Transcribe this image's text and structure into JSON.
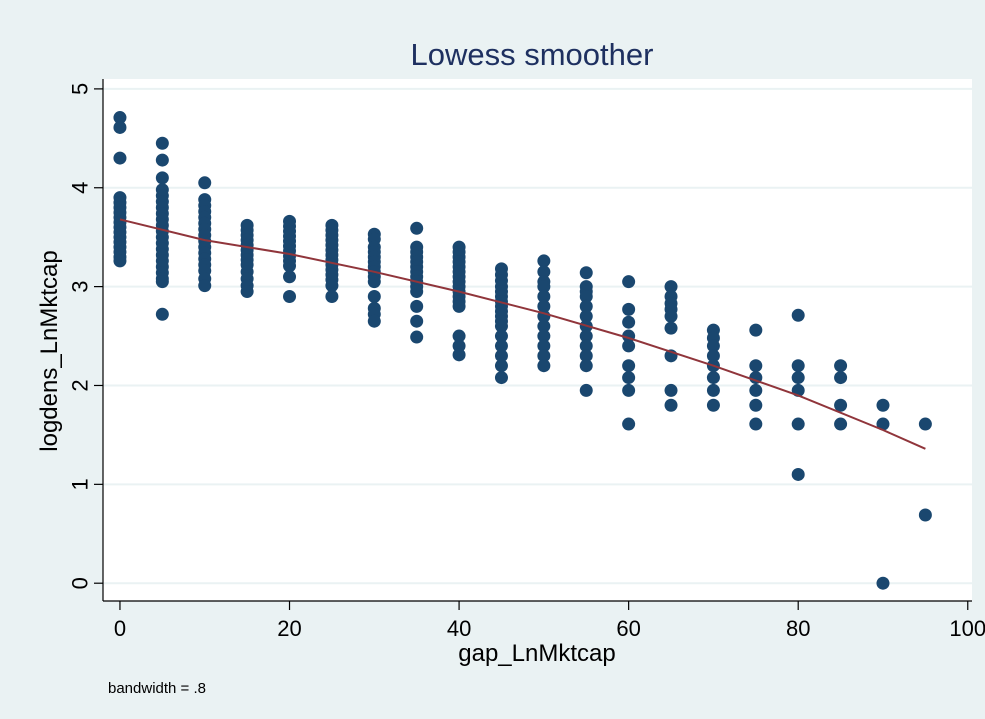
{
  "chart_data": {
    "type": "scatter",
    "title": "Lowess smoother",
    "xlabel": "gap_LnMktcap",
    "ylabel": "logdens_LnMktcap",
    "note": "bandwidth = .8",
    "xlim": [
      -2,
      100.5
    ],
    "ylim": [
      -0.18,
      5.1
    ],
    "xticks": [
      0,
      20,
      40,
      60,
      80,
      100
    ],
    "yticks": [
      0,
      1,
      2,
      3,
      4,
      5
    ],
    "grid": true,
    "colors": {
      "background": "#eaf2f3",
      "plot": "#ffffff",
      "points": "#1a476f",
      "line": "#90353b",
      "grid": "#eaf2f3",
      "text": "#000000",
      "title": "#1e3060"
    },
    "scatter_groups": [
      {
        "x": 0,
        "y": [
          4.71,
          4.61,
          4.3,
          3.9,
          3.85,
          3.8,
          3.75,
          3.7,
          3.65,
          3.6,
          3.55,
          3.5,
          3.45,
          3.4,
          3.35,
          3.3,
          3.26
        ]
      },
      {
        "x": 5,
        "y": [
          4.45,
          4.28,
          4.1,
          3.98,
          3.92,
          3.86,
          3.8,
          3.74,
          3.68,
          3.62,
          3.56,
          3.5,
          3.44,
          3.38,
          3.32,
          3.26,
          3.2,
          3.14,
          3.08,
          3.05,
          2.72
        ]
      },
      {
        "x": 10,
        "y": [
          4.05,
          3.88,
          3.82,
          3.76,
          3.7,
          3.64,
          3.58,
          3.52,
          3.46,
          3.4,
          3.34,
          3.28,
          3.22,
          3.16,
          3.08,
          3.01
        ]
      },
      {
        "x": 15,
        "y": [
          3.62,
          3.57,
          3.52,
          3.47,
          3.42,
          3.37,
          3.32,
          3.27,
          3.22,
          3.15,
          3.08,
          3.01,
          2.95
        ]
      },
      {
        "x": 20,
        "y": [
          3.66,
          3.61,
          3.56,
          3.51,
          3.46,
          3.41,
          3.36,
          3.31,
          3.26,
          3.21,
          3.1,
          2.9
        ]
      },
      {
        "x": 25,
        "y": [
          3.62,
          3.57,
          3.52,
          3.47,
          3.42,
          3.37,
          3.32,
          3.27,
          3.22,
          3.17,
          3.12,
          3.07,
          3.01,
          2.9
        ]
      },
      {
        "x": 30,
        "y": [
          3.53,
          3.48,
          3.4,
          3.35,
          3.3,
          3.25,
          3.2,
          3.15,
          3.1,
          3.05,
          2.9,
          2.78,
          2.72,
          2.65
        ]
      },
      {
        "x": 35,
        "y": [
          3.59,
          3.4,
          3.35,
          3.3,
          3.25,
          3.2,
          3.15,
          3.1,
          3.05,
          3.0,
          2.95,
          2.8,
          2.65,
          2.49
        ]
      },
      {
        "x": 40,
        "y": [
          3.4,
          3.35,
          3.3,
          3.25,
          3.2,
          3.15,
          3.1,
          3.05,
          3.0,
          2.95,
          2.9,
          2.85,
          2.8,
          2.5,
          2.4,
          2.31
        ]
      },
      {
        "x": 45,
        "y": [
          3.18,
          3.12,
          3.06,
          3.0,
          2.95,
          2.9,
          2.85,
          2.8,
          2.75,
          2.7,
          2.65,
          2.6,
          2.5,
          2.4,
          2.3,
          2.2,
          2.08
        ]
      },
      {
        "x": 50,
        "y": [
          3.26,
          3.15,
          3.05,
          3.0,
          2.9,
          2.8,
          2.7,
          2.6,
          2.5,
          2.4,
          2.3,
          2.2
        ]
      },
      {
        "x": 55,
        "y": [
          3.14,
          3.0,
          2.95,
          2.9,
          2.8,
          2.7,
          2.6,
          2.5,
          2.4,
          2.3,
          2.2,
          1.95
        ]
      },
      {
        "x": 60,
        "y": [
          3.05,
          2.77,
          2.64,
          2.5,
          2.4,
          2.2,
          2.08,
          1.95,
          1.61
        ]
      },
      {
        "x": 65,
        "y": [
          3.0,
          2.9,
          2.83,
          2.77,
          2.7,
          2.58,
          2.3,
          1.95,
          1.8
        ]
      },
      {
        "x": 70,
        "y": [
          2.56,
          2.48,
          2.4,
          2.3,
          2.2,
          2.08,
          1.95,
          1.8
        ]
      },
      {
        "x": 75,
        "y": [
          2.56,
          2.2,
          2.08,
          1.95,
          1.8,
          1.61
        ]
      },
      {
        "x": 80,
        "y": [
          2.71,
          2.2,
          2.08,
          1.95,
          1.61,
          1.1
        ]
      },
      {
        "x": 85,
        "y": [
          2.2,
          2.08,
          1.8,
          1.61
        ]
      },
      {
        "x": 90,
        "y": [
          1.8,
          1.61,
          0.0
        ]
      },
      {
        "x": 95,
        "y": [
          1.61,
          0.69
        ]
      }
    ],
    "lowess_line": {
      "x": [
        0,
        10,
        20,
        30,
        40,
        50,
        60,
        70,
        80,
        90,
        95
      ],
      "y": [
        3.68,
        3.47,
        3.33,
        3.15,
        2.95,
        2.73,
        2.48,
        2.2,
        1.9,
        1.55,
        1.36
      ]
    }
  }
}
